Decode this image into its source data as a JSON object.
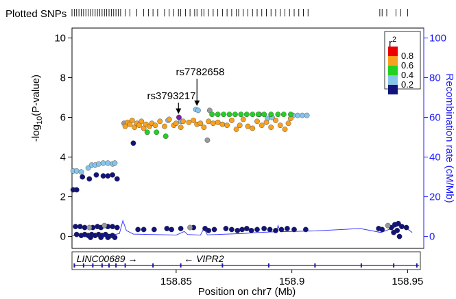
{
  "chart_data": {
    "type": "scatter",
    "title": "Plotted SNPs",
    "xlabel": "Position on chr7 (Mb)",
    "ylabel_left": "-log10(P-value)",
    "ylabel_left_main": "-log",
    "ylabel_left_sub": "10",
    "ylabel_left_tail": "(P-value)",
    "ylabel_right": "Recombination rate (cM/Mb)",
    "xlim": [
      158.805,
      158.957
    ],
    "ylim_left": [
      -0.6,
      10.5
    ],
    "ylim_right": [
      -6,
      105
    ],
    "x_ticks": [
      158.85,
      158.9,
      158.95
    ],
    "x_tick_labels": [
      "158.85",
      "158.9",
      "158.95"
    ],
    "y_ticks_left": [
      0,
      2,
      4,
      6,
      8,
      10
    ],
    "y_tick_labels_left": [
      "0",
      "2",
      "4",
      "6",
      "8",
      "10"
    ],
    "y_ticks_right": [
      0,
      20,
      40,
      60,
      80,
      100
    ],
    "y_tick_labels_right": [
      "0",
      "20",
      "40",
      "60",
      "80",
      "100"
    ],
    "legend": {
      "title_main": "r",
      "title_sup": "2",
      "placement": "top-right",
      "bins": [
        {
          "label": "0.8",
          "color": "#ee0000"
        },
        {
          "label": "0.6",
          "color": "#f7a11f"
        },
        {
          "label": "0.4",
          "color": "#22d122"
        },
        {
          "label": "0.2",
          "color": "#87c4ea"
        },
        {
          "label": "",
          "color": "#12137a"
        }
      ]
    },
    "colors": {
      "lead": "#7b1fa2",
      "red": "#ee0000",
      "orange": "#f7a11f",
      "green": "#22d122",
      "lightblue": "#87c4ea",
      "navy": "#12137a",
      "gray": "#9a9a9a",
      "recomb_line": "#3a3aff",
      "axis_right": "#1a1aff"
    },
    "annotations": [
      {
        "label": "rs7782658",
        "x": 158.859,
        "y": 6.4
      },
      {
        "label": "rs3793217",
        "x": 158.851,
        "y": 6.0
      }
    ],
    "genes": [
      {
        "name": "LINC00689",
        "direction": "→",
        "label_x": 158.807,
        "start": 158.806,
        "end": 158.83
      },
      {
        "name": "VIPR2",
        "direction": "←",
        "label_x": 158.862,
        "start": 158.83,
        "end": 158.955
      }
    ],
    "gene_exons": [
      158.806,
      158.81,
      158.814,
      158.818,
      158.821,
      158.824,
      158.828,
      158.84,
      158.852,
      158.87,
      158.89,
      158.91,
      158.93,
      158.944,
      158.954
    ],
    "rug_positions": [
      158.805,
      158.806,
      158.807,
      158.808,
      158.809,
      158.81,
      158.811,
      158.812,
      158.813,
      158.814,
      158.815,
      158.816,
      158.817,
      158.818,
      158.819,
      158.82,
      158.821,
      158.822,
      158.823,
      158.824,
      158.825,
      158.826,
      158.828,
      158.83,
      158.833,
      158.836,
      158.838,
      158.84,
      158.842,
      158.845,
      158.847,
      158.849,
      158.851,
      158.852,
      158.854,
      158.856,
      158.858,
      158.859,
      158.861,
      158.862,
      158.864,
      158.866,
      158.868,
      158.87,
      158.872,
      158.874,
      158.876,
      158.877,
      158.879,
      158.881,
      158.883,
      158.885,
      158.887,
      158.889,
      158.891,
      158.893,
      158.895,
      158.897,
      158.899,
      158.901,
      158.903,
      158.905,
      158.907,
      158.938,
      158.939,
      158.941,
      158.945,
      158.947,
      158.95
    ],
    "series": [
      {
        "color_key": "lead",
        "points": [
          [
            158.8512,
            6.0
          ]
        ]
      },
      {
        "color_key": "orange",
        "points": [
          [
            158.828,
            5.55
          ],
          [
            158.829,
            5.75
          ],
          [
            158.83,
            5.65
          ],
          [
            158.831,
            5.85
          ],
          [
            158.832,
            5.5
          ],
          [
            158.833,
            5.7
          ],
          [
            158.834,
            5.6
          ],
          [
            158.835,
            5.8
          ],
          [
            158.836,
            5.45
          ],
          [
            158.837,
            5.65
          ],
          [
            158.8385,
            5.55
          ],
          [
            158.8395,
            5.7
          ],
          [
            158.841,
            5.6
          ],
          [
            158.843,
            5.8
          ],
          [
            158.845,
            5.55
          ],
          [
            158.847,
            5.9
          ],
          [
            158.849,
            5.6
          ],
          [
            158.85,
            5.7
          ],
          [
            158.852,
            5.5
          ],
          [
            158.853,
            5.8
          ],
          [
            158.8555,
            5.75
          ],
          [
            158.8575,
            5.85
          ],
          [
            158.859,
            5.65
          ],
          [
            158.8605,
            5.7
          ],
          [
            158.862,
            5.5
          ],
          [
            158.864,
            5.8
          ],
          [
            158.866,
            5.7
          ],
          [
            158.868,
            5.75
          ],
          [
            158.87,
            5.65
          ],
          [
            158.872,
            5.6
          ],
          [
            158.874,
            5.85
          ],
          [
            158.876,
            5.4
          ],
          [
            158.8775,
            5.6
          ],
          [
            158.879,
            5.9
          ],
          [
            158.881,
            5.55
          ],
          [
            158.883,
            5.45
          ],
          [
            158.885,
            5.8
          ],
          [
            158.887,
            5.6
          ],
          [
            158.889,
            5.75
          ],
          [
            158.891,
            5.5
          ],
          [
            158.893,
            5.85
          ],
          [
            158.895,
            5.6
          ],
          [
            158.897,
            5.4
          ],
          [
            158.8985,
            5.7
          ],
          [
            158.8995,
            5.95
          ]
        ]
      },
      {
        "color_key": "green",
        "points": [
          [
            158.8375,
            5.25
          ],
          [
            158.8415,
            5.25
          ],
          [
            158.8455,
            5.05
          ],
          [
            158.8655,
            6.15
          ],
          [
            158.868,
            6.15
          ],
          [
            158.8705,
            6.15
          ],
          [
            158.873,
            6.15
          ],
          [
            158.8755,
            6.15
          ],
          [
            158.878,
            6.15
          ],
          [
            158.8805,
            6.15
          ],
          [
            158.883,
            6.15
          ],
          [
            158.8855,
            6.15
          ],
          [
            158.888,
            6.15
          ],
          [
            158.891,
            6.15
          ],
          [
            158.894,
            6.15
          ],
          [
            158.8965,
            6.15
          ],
          [
            158.8995,
            6.15
          ]
        ]
      },
      {
        "color_key": "lightblue",
        "points": [
          [
            158.8055,
            3.3
          ],
          [
            158.807,
            3.3
          ],
          [
            158.809,
            3.25
          ],
          [
            158.812,
            3.45
          ],
          [
            158.8135,
            3.6
          ],
          [
            158.815,
            3.6
          ],
          [
            158.8165,
            3.65
          ],
          [
            158.8185,
            3.7
          ],
          [
            158.8205,
            3.7
          ],
          [
            158.8225,
            3.65
          ],
          [
            158.8235,
            3.7
          ],
          [
            158.8465,
            5.85
          ],
          [
            158.852,
            5.8
          ],
          [
            158.8585,
            6.4
          ],
          [
            158.8595,
            6.35
          ],
          [
            158.8895,
            5.95
          ],
          [
            158.8915,
            6.0
          ],
          [
            158.9005,
            6.1
          ],
          [
            158.9025,
            6.1
          ],
          [
            158.9045,
            6.1
          ],
          [
            158.9065,
            6.1
          ]
        ]
      },
      {
        "color_key": "gray",
        "points": [
          [
            158.8275,
            5.7
          ],
          [
            158.8645,
            6.35
          ],
          [
            158.886,
            6.15
          ],
          [
            158.8635,
            4.85
          ],
          [
            158.8125,
            0.45
          ],
          [
            158.819,
            0.55
          ],
          [
            158.856,
            0.45
          ],
          [
            158.9415,
            0.55
          ]
        ]
      },
      {
        "color_key": "navy",
        "points": [
          [
            158.8055,
            2.35
          ],
          [
            158.807,
            2.35
          ],
          [
            158.8095,
            3.0
          ],
          [
            158.8125,
            2.9
          ],
          [
            158.8155,
            3.1
          ],
          [
            158.8185,
            3.05
          ],
          [
            158.8205,
            3.05
          ],
          [
            158.8225,
            3.1
          ],
          [
            158.8245,
            2.9
          ],
          [
            158.8315,
            4.7
          ],
          [
            158.8065,
            0.5
          ],
          [
            158.8085,
            0.5
          ],
          [
            158.8105,
            0.45
          ],
          [
            158.814,
            0.45
          ],
          [
            158.816,
            0.5
          ],
          [
            158.8175,
            0.45
          ],
          [
            158.8205,
            0.5
          ],
          [
            158.8225,
            0.5
          ],
          [
            158.8245,
            0.45
          ],
          [
            158.807,
            0.1
          ],
          [
            158.809,
            0.05
          ],
          [
            158.8105,
            0.1
          ],
          [
            158.812,
            0.05
          ],
          [
            158.8135,
            0.1
          ],
          [
            158.815,
            0.05
          ],
          [
            158.8165,
            0.1
          ],
          [
            158.818,
            0.05
          ],
          [
            158.8195,
            0.1
          ],
          [
            158.821,
            0.0
          ],
          [
            158.8225,
            0.05
          ],
          [
            158.8235,
            -0.05
          ],
          [
            158.813,
            -0.05
          ],
          [
            158.8175,
            -0.05
          ],
          [
            158.8205,
            -0.05
          ],
          [
            158.8335,
            0.35
          ],
          [
            158.836,
            0.35
          ],
          [
            158.8405,
            0.35
          ],
          [
            158.846,
            0.4
          ],
          [
            158.848,
            0.35
          ],
          [
            158.852,
            0.4
          ],
          [
            158.8575,
            0.45
          ],
          [
            158.8625,
            0.4
          ],
          [
            158.864,
            0.3
          ],
          [
            158.8665,
            0.35
          ],
          [
            158.8715,
            0.4
          ],
          [
            158.874,
            0.35
          ],
          [
            158.8765,
            0.3
          ],
          [
            158.8785,
            0.35
          ],
          [
            158.8805,
            0.4
          ],
          [
            158.8825,
            0.3
          ],
          [
            158.885,
            0.35
          ],
          [
            158.888,
            0.4
          ],
          [
            158.8905,
            0.35
          ],
          [
            158.893,
            0.3
          ],
          [
            158.8955,
            0.35
          ],
          [
            158.898,
            0.4
          ],
          [
            158.901,
            0.35
          ],
          [
            158.906,
            0.35
          ],
          [
            158.9375,
            0.4
          ],
          [
            158.939,
            0.35
          ],
          [
            158.943,
            0.45
          ],
          [
            158.9445,
            0.6
          ],
          [
            158.946,
            0.65
          ],
          [
            158.9475,
            0.5
          ],
          [
            158.9495,
            0.45
          ],
          [
            158.9455,
            0.3
          ],
          [
            158.944,
            0.2
          ],
          [
            158.9465,
            0.0
          ]
        ]
      }
    ],
    "recombination": [
      [
        158.805,
        0.5
      ],
      [
        158.822,
        0.6
      ],
      [
        158.8255,
        1.5
      ],
      [
        158.827,
        8.0
      ],
      [
        158.8285,
        3.0
      ],
      [
        158.8315,
        1.2
      ],
      [
        158.84,
        1.0
      ],
      [
        158.85,
        0.7
      ],
      [
        158.8535,
        2.5
      ],
      [
        158.855,
        1.0
      ],
      [
        158.8605,
        0.7
      ],
      [
        158.862,
        4.0
      ],
      [
        158.8635,
        0.8
      ],
      [
        158.879,
        1.5
      ],
      [
        158.8855,
        2.0
      ],
      [
        158.8935,
        2.4
      ],
      [
        158.894,
        5.5
      ],
      [
        158.895,
        2.4
      ],
      [
        158.91,
        2.8
      ],
      [
        158.9295,
        4.0
      ],
      [
        158.9385,
        2.0
      ],
      [
        158.9475,
        6.0
      ],
      [
        158.952,
        2.0
      ]
    ]
  }
}
